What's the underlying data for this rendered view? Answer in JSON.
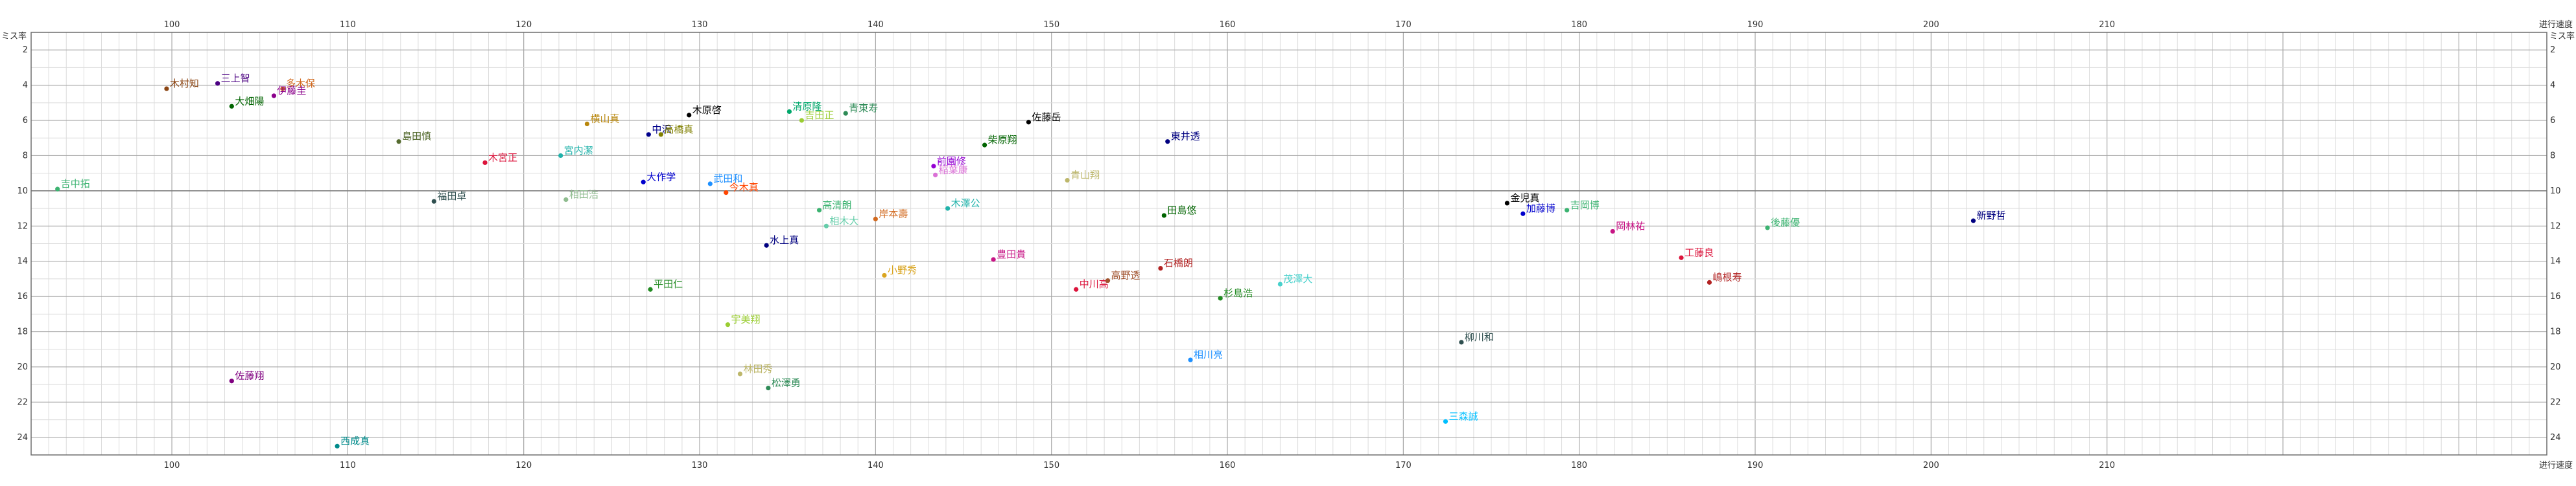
{
  "chart_data": {
    "type": "scatter",
    "x_axis_title": "进行速度",
    "y_axis_title": "ミス率",
    "xlim": [
      92,
      235
    ],
    "ylim": [
      1,
      25
    ],
    "y_inverted": true,
    "x_ticks": [
      100,
      110,
      120,
      130,
      140,
      150,
      160,
      170,
      180,
      190,
      200,
      210
    ],
    "y_ticks": [
      2,
      4,
      6,
      8,
      10,
      12,
      14,
      16,
      18,
      20,
      22,
      24
    ],
    "grid": true,
    "points": [
      {
        "name": "吉中拓",
        "x": 93.5,
        "y": 9.9,
        "color": "#3cb371"
      },
      {
        "name": "木村知",
        "x": 99.7,
        "y": 4.2,
        "color": "#8b4513"
      },
      {
        "name": "三上智",
        "x": 102.6,
        "y": 3.9,
        "color": "#4b0082"
      },
      {
        "name": "大畑陽",
        "x": 103.4,
        "y": 5.2,
        "color": "#006400"
      },
      {
        "name": "佐藤翔",
        "x": 103.4,
        "y": 20.8,
        "color": "#800080"
      },
      {
        "name": "多木保",
        "x": 106.3,
        "y": 4.2,
        "color": "#d2691e"
      },
      {
        "name": "伊藤圭",
        "x": 105.8,
        "y": 4.6,
        "color": "#8b008b"
      },
      {
        "name": "西成真",
        "x": 109.4,
        "y": 24.5,
        "color": "#008b8b"
      },
      {
        "name": "島田慎",
        "x": 112.9,
        "y": 7.2,
        "color": "#556b2f"
      },
      {
        "name": "福田卓",
        "x": 114.9,
        "y": 10.6,
        "color": "#2f4f4f"
      },
      {
        "name": "木宮正",
        "x": 117.8,
        "y": 8.4,
        "color": "#dc143c"
      },
      {
        "name": "宮内潔",
        "x": 122.1,
        "y": 8.0,
        "color": "#20b2aa"
      },
      {
        "name": "相田浩",
        "x": 122.4,
        "y": 10.5,
        "color": "#8fbc8f"
      },
      {
        "name": "横山真",
        "x": 123.6,
        "y": 6.2,
        "color": "#b8860b"
      },
      {
        "name": "中沢",
        "x": 127.1,
        "y": 6.8,
        "color": "#00008b"
      },
      {
        "name": "木原啓",
        "x": 129.4,
        "y": 5.7,
        "color": "#000000"
      },
      {
        "name": "大作学",
        "x": 126.8,
        "y": 9.5,
        "color": "#0000cd"
      },
      {
        "name": "高橋真",
        "x": 127.8,
        "y": 6.8,
        "color": "#808000"
      },
      {
        "name": "平田仁",
        "x": 127.2,
        "y": 15.6,
        "color": "#228b22"
      },
      {
        "name": "武田和",
        "x": 130.6,
        "y": 9.6,
        "color": "#1e90ff"
      },
      {
        "name": "今木真",
        "x": 131.5,
        "y": 10.1,
        "color": "#ff4500"
      },
      {
        "name": "宇美翔",
        "x": 131.6,
        "y": 17.6,
        "color": "#9acd32"
      },
      {
        "name": "林田秀",
        "x": 132.3,
        "y": 20.4,
        "color": "#bdb76b"
      },
      {
        "name": "松澤勇",
        "x": 133.9,
        "y": 21.2,
        "color": "#2e8b57"
      },
      {
        "name": "水上真",
        "x": 133.8,
        "y": 13.1,
        "color": "#000080"
      },
      {
        "name": "清原隆",
        "x": 135.1,
        "y": 5.5,
        "color": "#00a86b"
      },
      {
        "name": "吉田正",
        "x": 135.8,
        "y": 6.0,
        "color": "#9acd32"
      },
      {
        "name": "高清朗",
        "x": 136.8,
        "y": 11.1,
        "color": "#3cb371"
      },
      {
        "name": "相木大",
        "x": 137.2,
        "y": 12.0,
        "color": "#66cdaa"
      },
      {
        "name": "青東寿",
        "x": 138.3,
        "y": 5.6,
        "color": "#2e8b57"
      },
      {
        "name": "岸本壽",
        "x": 140.0,
        "y": 11.6,
        "color": "#d2691e"
      },
      {
        "name": "小野秀",
        "x": 140.5,
        "y": 14.8,
        "color": "#daa520"
      },
      {
        "name": "前園修",
        "x": 143.3,
        "y": 8.6,
        "color": "#9400d3"
      },
      {
        "name": "稲葉康",
        "x": 143.4,
        "y": 9.1,
        "color": "#da70d6"
      },
      {
        "name": "木澤公",
        "x": 144.1,
        "y": 11.0,
        "color": "#20b2aa"
      },
      {
        "name": "豊田貴",
        "x": 146.7,
        "y": 13.9,
        "color": "#c71585"
      },
      {
        "name": "柴原翔",
        "x": 146.2,
        "y": 7.4,
        "color": "#006400"
      },
      {
        "name": "佐藤岳",
        "x": 148.7,
        "y": 6.1,
        "color": "#000000"
      },
      {
        "name": "青山翔",
        "x": 150.9,
        "y": 9.4,
        "color": "#bdb76b"
      },
      {
        "name": "中川高",
        "x": 151.4,
        "y": 15.6,
        "color": "#dc143c"
      },
      {
        "name": "高野透",
        "x": 153.2,
        "y": 15.1,
        "color": "#a0522d"
      },
      {
        "name": "石橋朗",
        "x": 156.2,
        "y": 14.4,
        "color": "#b22222"
      },
      {
        "name": "田島悠",
        "x": 156.4,
        "y": 11.4,
        "color": "#006400"
      },
      {
        "name": "東井透",
        "x": 156.6,
        "y": 7.2,
        "color": "#000080"
      },
      {
        "name": "相川亮",
        "x": 157.9,
        "y": 19.6,
        "color": "#1e90ff"
      },
      {
        "name": "杉島浩",
        "x": 159.6,
        "y": 16.1,
        "color": "#228b22"
      },
      {
        "name": "茂澤大",
        "x": 163.0,
        "y": 15.3,
        "color": "#48d1cc"
      },
      {
        "name": "柳川和",
        "x": 173.3,
        "y": 18.6,
        "color": "#2f4f4f"
      },
      {
        "name": "三森誠",
        "x": 172.4,
        "y": 23.1,
        "color": "#00bfff"
      },
      {
        "name": "金児真",
        "x": 175.9,
        "y": 10.7,
        "color": "#000000"
      },
      {
        "name": "加藤博",
        "x": 176.8,
        "y": 11.3,
        "color": "#0000cd"
      },
      {
        "name": "吉岡博",
        "x": 179.3,
        "y": 11.1,
        "color": "#3cb371"
      },
      {
        "name": "岡林祐",
        "x": 181.9,
        "y": 12.3,
        "color": "#c71585"
      },
      {
        "name": "工藤良",
        "x": 185.8,
        "y": 13.8,
        "color": "#dc143c"
      },
      {
        "name": "嶋根寿",
        "x": 187.4,
        "y": 15.2,
        "color": "#b22222"
      },
      {
        "name": "後藤優",
        "x": 190.7,
        "y": 12.1,
        "color": "#3cb371"
      },
      {
        "name": "新野哲",
        "x": 202.4,
        "y": 11.7,
        "color": "#000080"
      }
    ]
  }
}
